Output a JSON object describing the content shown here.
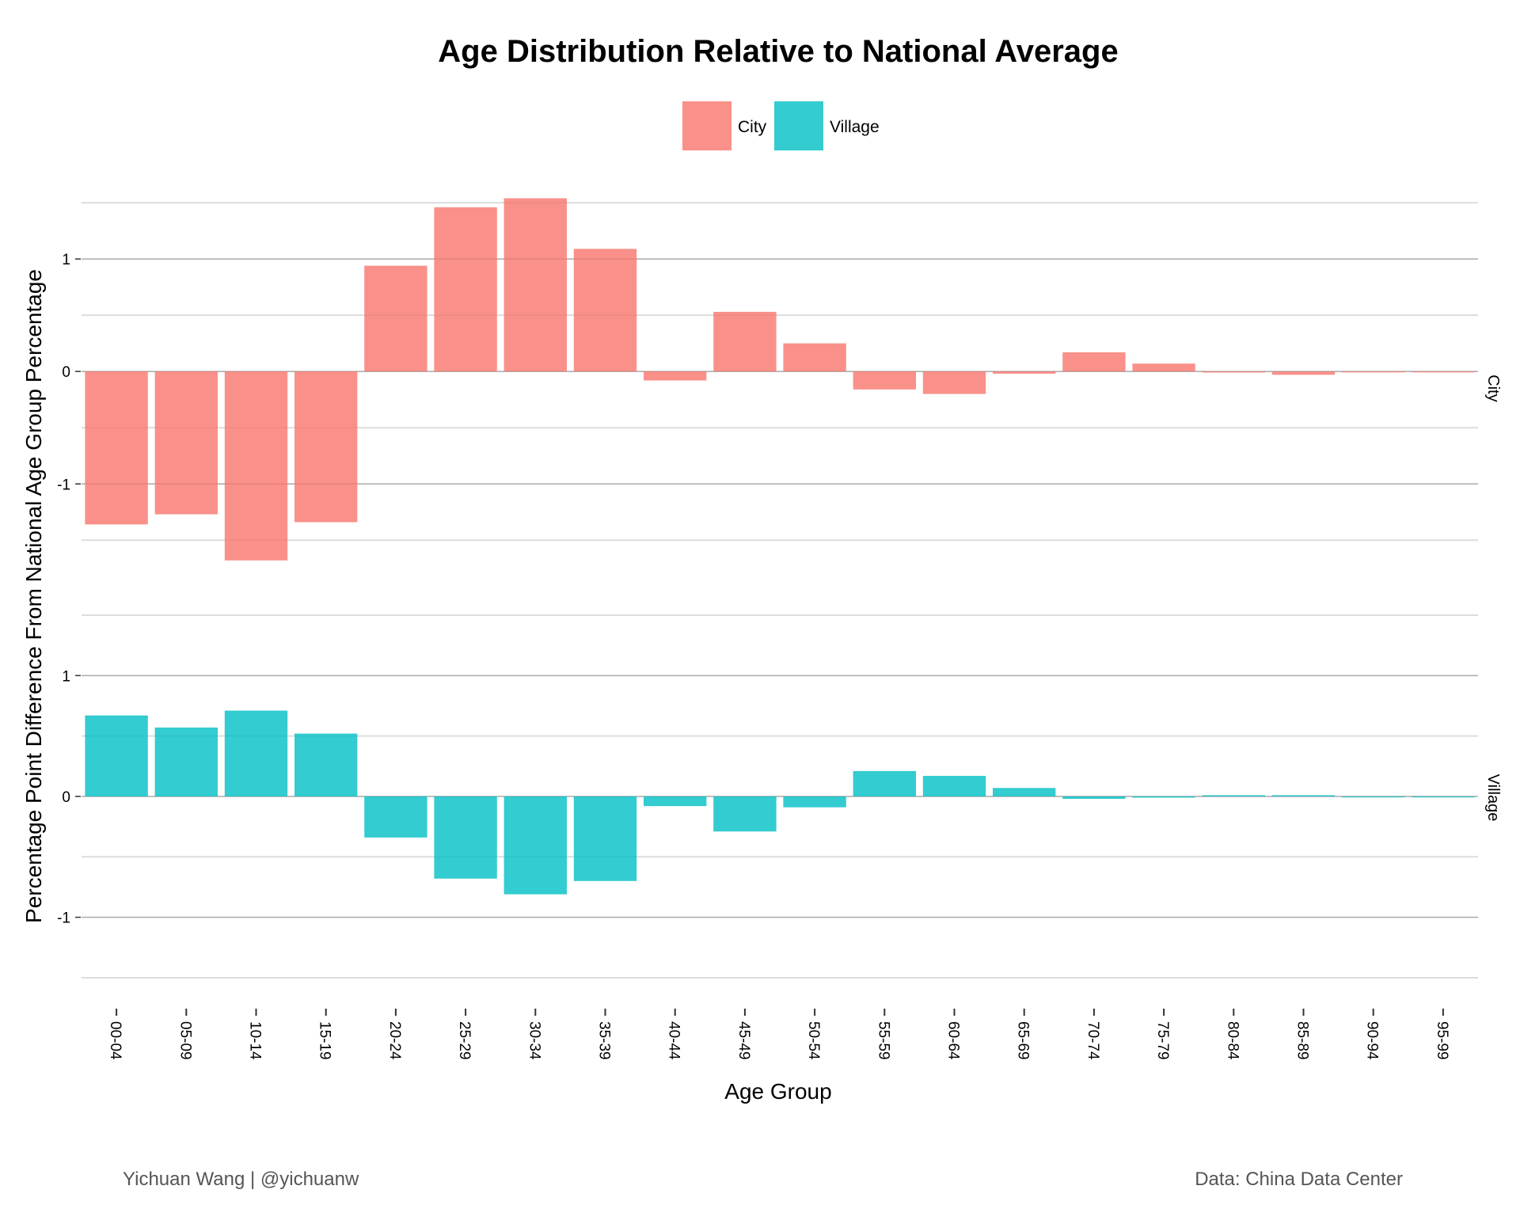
{
  "chart_data": {
    "type": "bar",
    "title": "Age Distribution Relative to National Average",
    "xlabel": "Age Group",
    "ylabel": "Percentage Point Difference From National Age Group Percentage",
    "legend": {
      "position": "top",
      "entries": [
        "City",
        "Village"
      ]
    },
    "colors": {
      "City": "#F8766D",
      "Village": "#00BFC4"
    },
    "grid": true,
    "categories": [
      "00-04",
      "05-09",
      "10-14",
      "15-19",
      "20-24",
      "25-29",
      "30-34",
      "35-39",
      "40-44",
      "45-49",
      "50-54",
      "55-59",
      "60-64",
      "65-69",
      "70-74",
      "75-79",
      "80-84",
      "85-89",
      "90-94",
      "95-99"
    ],
    "panels": [
      {
        "strip": "City",
        "ylim": [
          -1.85,
          1.55
        ],
        "yticks": [
          -1,
          0,
          1
        ],
        "ytick_labels": [
          "-1",
          "0",
          "1"
        ],
        "values": [
          -1.36,
          -1.27,
          -1.68,
          -1.34,
          0.94,
          1.46,
          1.54,
          1.09,
          -0.08,
          0.53,
          0.25,
          -0.16,
          -0.2,
          -0.02,
          0.17,
          0.07,
          -0.01,
          -0.03,
          0.0,
          0.0
        ]
      },
      {
        "strip": "Village",
        "ylim": [
          -1.52,
          1.5
        ],
        "yticks": [
          -1,
          0,
          1
        ],
        "ytick_labels": [
          "-1",
          "0",
          "1"
        ],
        "values": [
          0.67,
          0.57,
          0.71,
          0.52,
          -0.34,
          -0.68,
          -0.81,
          -0.7,
          -0.08,
          -0.29,
          -0.09,
          0.21,
          0.17,
          0.07,
          -0.02,
          -0.01,
          0.01,
          0.01,
          0.0,
          0.0
        ]
      }
    ]
  },
  "credits": {
    "left": "Yichuan Wang | @yichuanw",
    "right": "Data: China Data Center"
  }
}
